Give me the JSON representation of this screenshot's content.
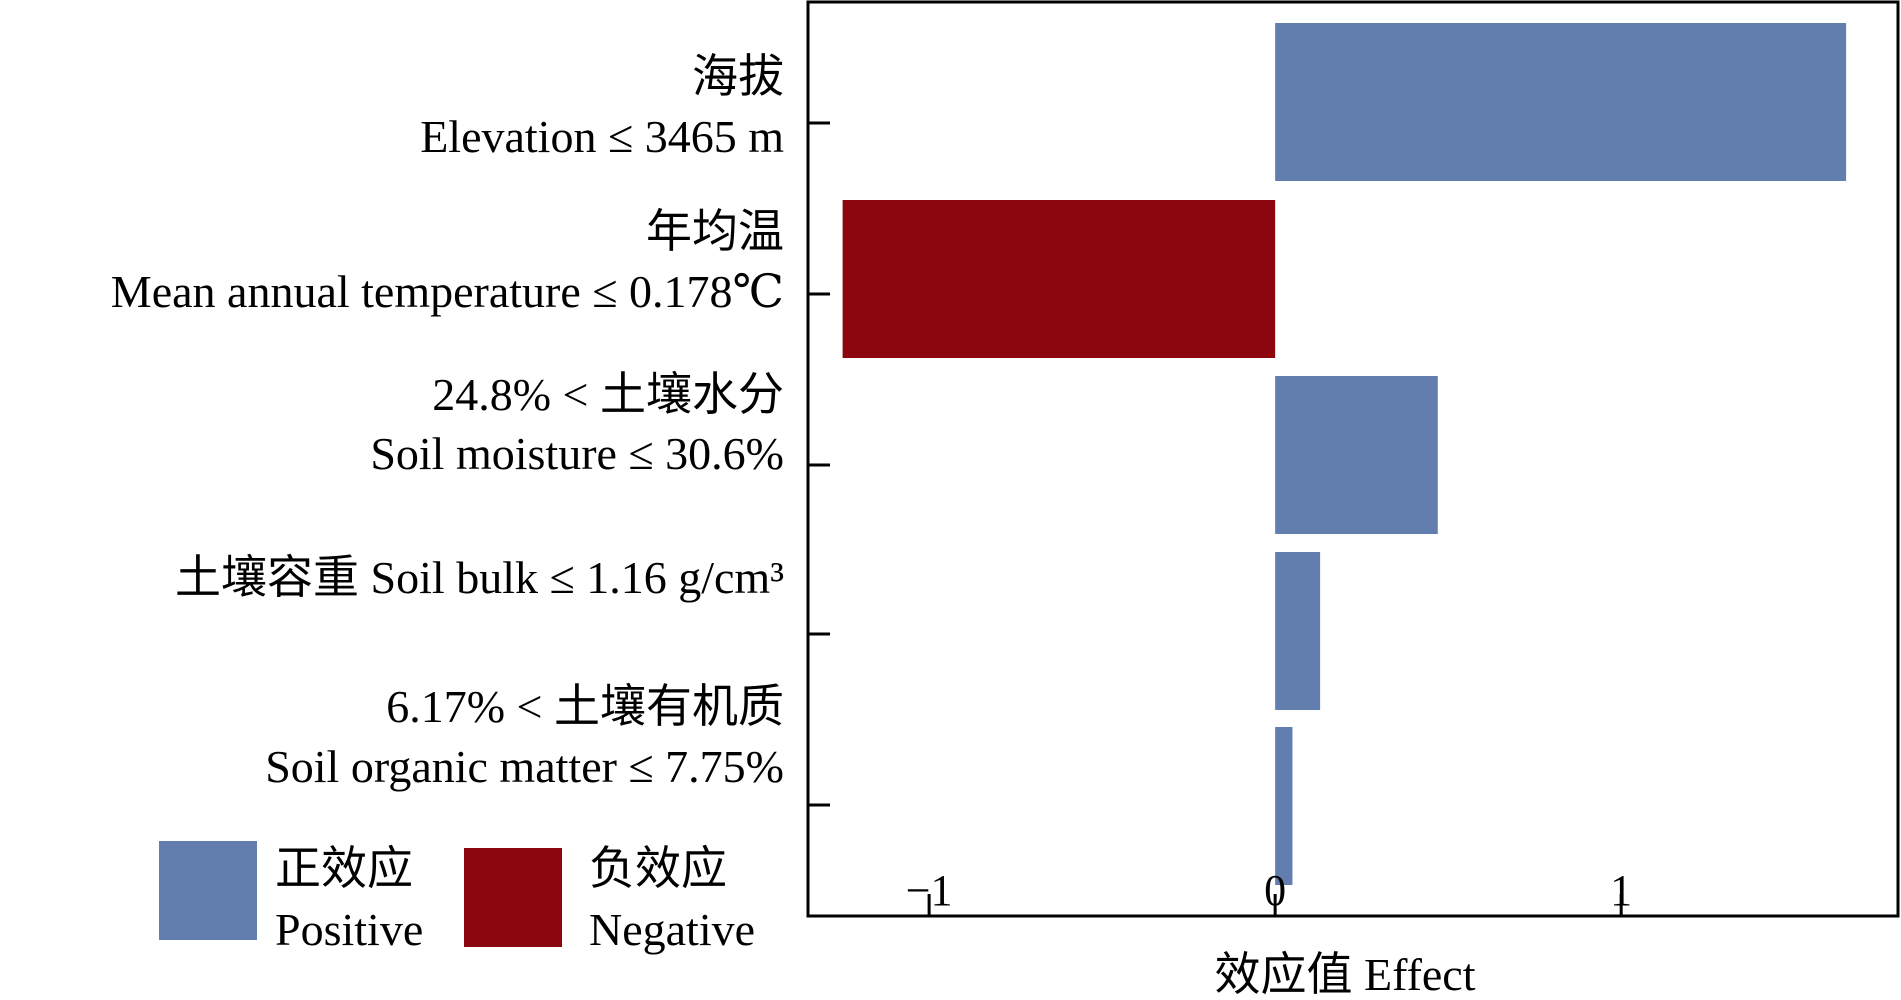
{
  "chart_data": {
    "type": "bar",
    "orientation": "horizontal",
    "categories": [
      {
        "zh": "海拔",
        "en": "Elevation ≤ 3465 m"
      },
      {
        "zh": "年均温",
        "en": "Mean annual temperature ≤ 0.178℃"
      },
      {
        "zh": "24.8% < 土壤水分",
        "en": "Soil moisture ≤ 30.6%"
      },
      {
        "zh": "土壤容重 Soil bulk ≤ 1.16 g/cm³",
        "en": ""
      },
      {
        "zh": "6.17% < 土壤有机质",
        "en": "Soil organic matter ≤ 7.75%"
      }
    ],
    "values": [
      1.65,
      -1.25,
      0.47,
      0.13,
      0.05
    ],
    "xlabel": "效应值 Effect",
    "ylabel": "",
    "xlim": [
      -1.35,
      1.8
    ],
    "xticks": [
      -1,
      0,
      1
    ],
    "xtick_labels": [
      "−1",
      "0",
      "1"
    ],
    "grid": false,
    "legend": {
      "placement": "bottom-left",
      "entries": [
        {
          "zh": "正效应",
          "en": "Positive",
          "color": "#627eae"
        },
        {
          "zh": "负效应",
          "en": "Negative",
          "color": "#8c0610"
        }
      ]
    },
    "colors": {
      "positive": "#627eae",
      "negative": "#8c0610"
    }
  }
}
